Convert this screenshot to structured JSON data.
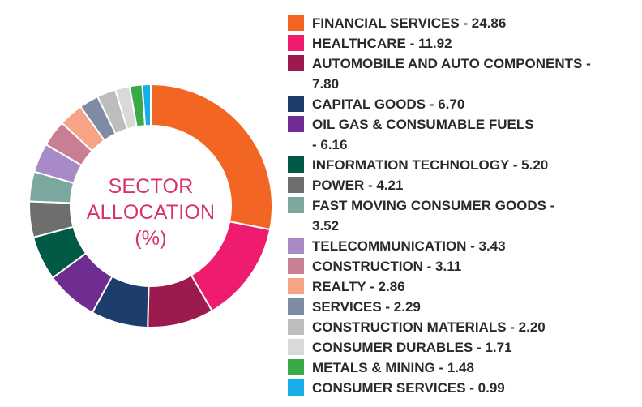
{
  "chart_data": {
    "type": "pie",
    "donut": true,
    "center_label": [
      "SECTOR",
      "ALLOCATION",
      "(%)"
    ],
    "legend_placement": "right",
    "categories": [
      "FINANCIAL SERVICES",
      "HEALTHCARE",
      "AUTOMOBILE AND AUTO COMPONENTS",
      "CAPITAL GOODS",
      "OIL GAS & CONSUMABLE FUELS",
      "INFORMATION TECHNOLOGY",
      "POWER",
      "FAST MOVING CONSUMER GOODS",
      "TELECOMMUNICATION",
      "CONSTRUCTION",
      "REALTY",
      "SERVICES",
      "CONSTRUCTION MATERIALS",
      "CONSUMER DURABLES",
      "METALS & MINING",
      "CONSUMER SERVICES"
    ],
    "values": [
      24.86,
      11.92,
      7.8,
      6.7,
      6.16,
      5.2,
      4.21,
      3.52,
      3.43,
      3.11,
      2.86,
      2.29,
      2.2,
      1.71,
      1.48,
      0.99
    ],
    "legend_labels": [
      [
        "FINANCIAL SERVICES - 24.86"
      ],
      [
        "HEALTHCARE - 11.92"
      ],
      [
        "AUTOMOBILE AND AUTO COMPONENTS -",
        "7.80"
      ],
      [
        "CAPITAL GOODS - 6.70"
      ],
      [
        "OIL GAS & CONSUMABLE FUELS",
        "- 6.16"
      ],
      [
        "INFORMATION TECHNOLOGY - 5.20"
      ],
      [
        "POWER - 4.21"
      ],
      [
        "FAST MOVING CONSUMER GOODS -",
        "3.52"
      ],
      [
        "TELECOMMUNICATION - 3.43"
      ],
      [
        "CONSTRUCTION - 3.11"
      ],
      [
        "REALTY - 2.86"
      ],
      [
        "SERVICES - 2.29"
      ],
      [
        "CONSTRUCTION MATERIALS - 2.20"
      ],
      [
        "CONSUMER DURABLES - 1.71"
      ],
      [
        "METALS & MINING - 1.48"
      ],
      [
        "CONSUMER SERVICES - 0.99"
      ]
    ],
    "colors": [
      "#f26522",
      "#ee1b6f",
      "#9b1b4f",
      "#1d3d6b",
      "#6f2c91",
      "#005a45",
      "#6e6e6e",
      "#7ca79e",
      "#a78ac6",
      "#c97f93",
      "#f7a385",
      "#7f8ba3",
      "#bdbdbd",
      "#d9d9d9",
      "#3aaa49",
      "#17aee8"
    ]
  }
}
